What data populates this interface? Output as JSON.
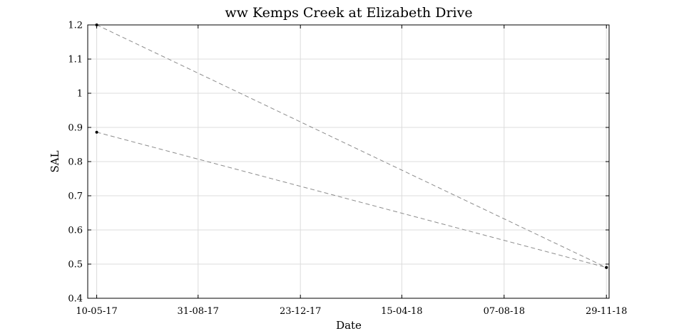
{
  "chart_data": {
    "type": "scatter",
    "title": "ww Kemps Creek at Elizabeth Drive",
    "xlabel": "Date",
    "ylabel": "SAL",
    "x_type": "date",
    "xlim": [
      "2017-04-30",
      "2018-12-02"
    ],
    "ylim": [
      0.4,
      1.2
    ],
    "yticks": [
      0.4,
      0.5,
      0.6,
      0.7,
      0.8,
      0.9,
      1,
      1.1,
      1.2
    ],
    "ytick_labels": [
      "0.4",
      "0.5",
      "0.6",
      "0.7",
      "0.8",
      "0.9",
      "1",
      "1.1",
      "1.2"
    ],
    "xticks": [
      "2017-05-10",
      "2017-08-31",
      "2017-12-23",
      "2018-04-15",
      "2018-08-07",
      "2018-11-29"
    ],
    "xtick_labels": [
      "10-05-17",
      "31-08-17",
      "23-12-17",
      "15-04-18",
      "07-08-18",
      "29-11-18"
    ],
    "grid": true,
    "line_color": "#8c8c8c",
    "line_style": "dashed",
    "marker_color": "#000000",
    "series": [
      {
        "x": [
          "2017-05-10",
          "2018-11-29"
        ],
        "y": [
          1.2,
          0.49
        ]
      },
      {
        "x": [
          "2017-05-10",
          "2018-11-29"
        ],
        "y": [
          0.886,
          0.49
        ]
      }
    ]
  }
}
